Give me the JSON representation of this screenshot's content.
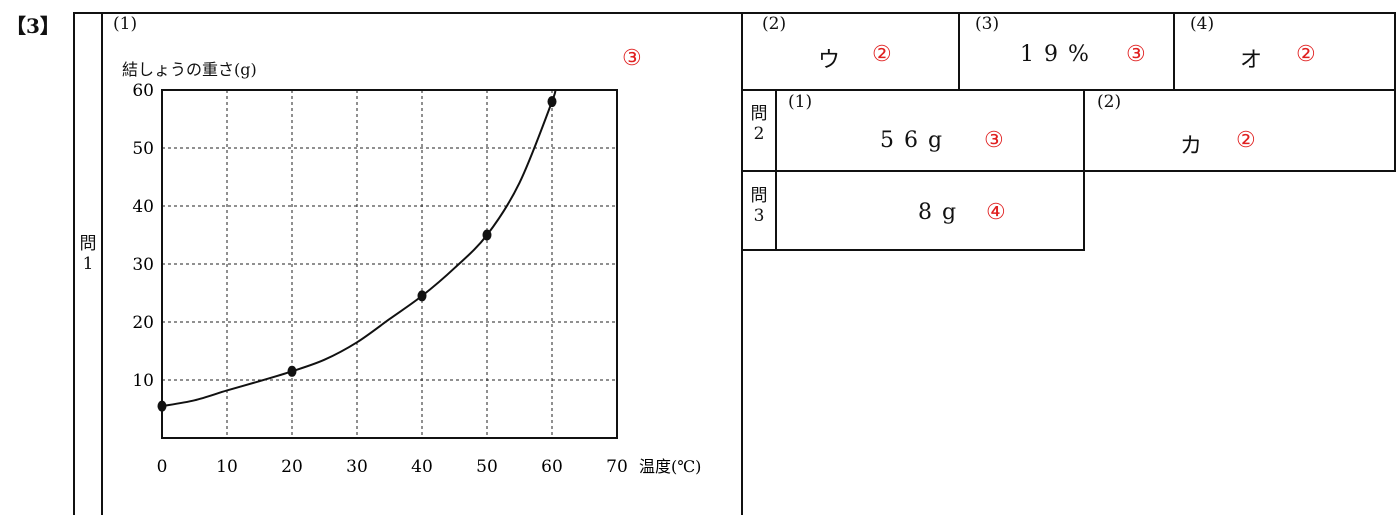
{
  "section_label": "【3】",
  "q1": {
    "row_label_1": "問",
    "row_label_2": "1",
    "sub_label": "(1)",
    "score": "③",
    "ylabel": "結しょうの重さ(g)",
    "xlabel": "温度(℃)"
  },
  "q1_answers": [
    {
      "label": "(2)",
      "answer": "ウ",
      "score": "②"
    },
    {
      "label": "(3)",
      "answer": "19%",
      "score": "③"
    },
    {
      "label": "(4)",
      "answer": "オ",
      "score": "②"
    }
  ],
  "q2": {
    "row_label_1": "問",
    "row_label_2": "2",
    "parts": [
      {
        "label": "(1)",
        "answer": "56g",
        "score": "③"
      },
      {
        "label": "(2)",
        "answer": "カ",
        "score": "②"
      }
    ]
  },
  "q3": {
    "row_label_1": "問",
    "row_label_2": "3",
    "answer": "8g",
    "score": "④"
  },
  "chart_data": {
    "type": "line",
    "xlabel": "温度(℃)",
    "ylabel": "結しょうの重さ(g)",
    "xlim": [
      0,
      70
    ],
    "ylim": [
      0,
      60
    ],
    "xticks": [
      0,
      10,
      20,
      30,
      40,
      50,
      60,
      70
    ],
    "yticks": [
      10,
      20,
      30,
      40,
      50,
      60
    ],
    "grid": true,
    "points": [
      {
        "x": 0,
        "y": 5.5
      },
      {
        "x": 20,
        "y": 11.5
      },
      {
        "x": 40,
        "y": 24.5
      },
      {
        "x": 50,
        "y": 35
      },
      {
        "x": 60,
        "y": 58
      }
    ],
    "curve": [
      {
        "x": 0,
        "y": 5.5
      },
      {
        "x": 5,
        "y": 6.5
      },
      {
        "x": 10,
        "y": 8.2
      },
      {
        "x": 15,
        "y": 9.8
      },
      {
        "x": 20,
        "y": 11.5
      },
      {
        "x": 25,
        "y": 13.5
      },
      {
        "x": 30,
        "y": 16.5
      },
      {
        "x": 35,
        "y": 20.5
      },
      {
        "x": 40,
        "y": 24.5
      },
      {
        "x": 45,
        "y": 29.3
      },
      {
        "x": 50,
        "y": 35
      },
      {
        "x": 55,
        "y": 44
      },
      {
        "x": 60,
        "y": 58
      },
      {
        "x": 60.4,
        "y": 60
      }
    ]
  }
}
